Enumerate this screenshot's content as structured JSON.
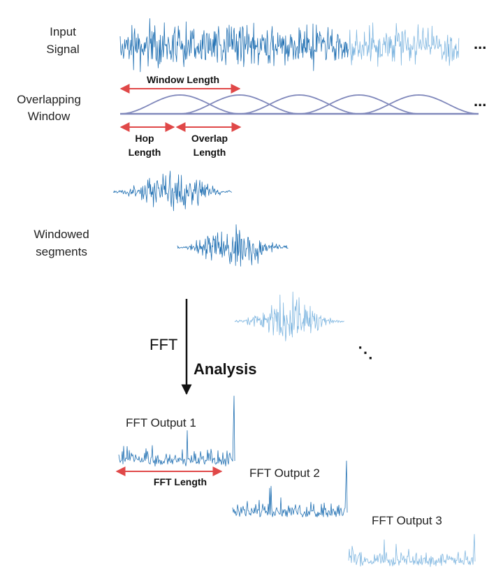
{
  "labels": {
    "input_signal": [
      "Input",
      "Signal"
    ],
    "overlapping_window": [
      "Overlapping",
      "Window"
    ],
    "window_length": "Window Length",
    "hop_length": [
      "Hop",
      "Length"
    ],
    "overlap_length": [
      "Overlap",
      "Length"
    ],
    "windowed_segments": [
      "Windowed",
      "segments"
    ],
    "fft": "FFT",
    "analysis": "Analysis",
    "fft_output_1": "FFT Output 1",
    "fft_output_2": "FFT Output 2",
    "fft_output_3": "FFT Output 3",
    "fft_length": "FFT Length",
    "ellipsis": "...",
    "diag_ellipsis": "⋱"
  },
  "colors": {
    "signal_dark": "#1f6fb2",
    "signal_light": "#7fb6e0",
    "window_curve": "#8088bb",
    "arrow_red": "#e04848",
    "text": "#111111"
  },
  "window_count": 5
}
